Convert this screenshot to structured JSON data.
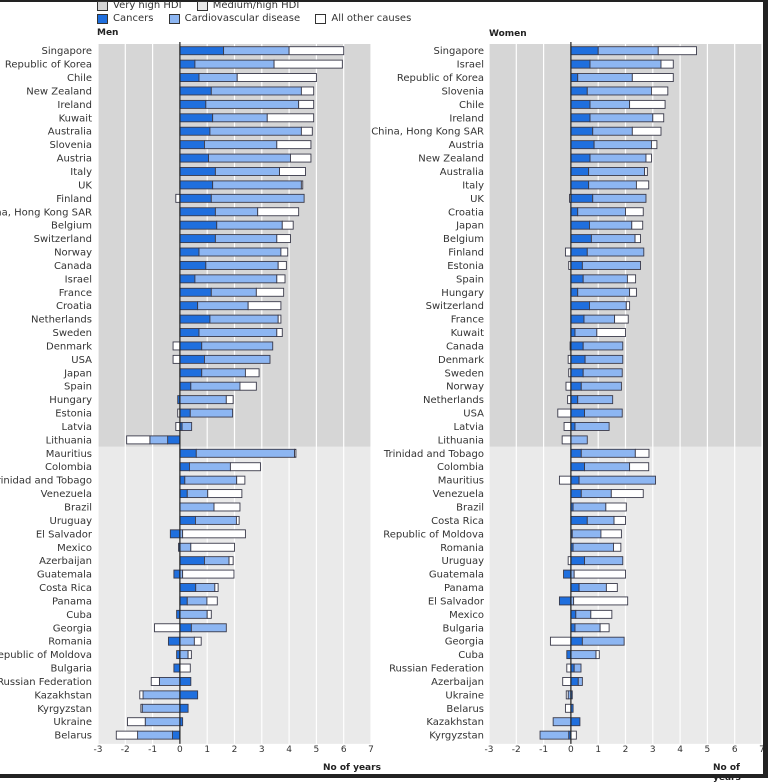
{
  "legend": {
    "hdi": [
      {
        "label": "Very high HDI",
        "color": "#d6d6d6"
      },
      {
        "label": "Medium/high HDI",
        "color": "#eaeaea"
      }
    ],
    "causes": [
      {
        "label": "Cancers",
        "color": "#1f6fde"
      },
      {
        "label": "Cardiovascular disease",
        "color": "#8db6f2"
      },
      {
        "label": "All other causes",
        "color": "#ffffff"
      }
    ]
  },
  "chart_data": [
    {
      "type": "bar",
      "title": "Men",
      "xlabel": "No of years",
      "xlim": [
        -3,
        7
      ],
      "xticks": [
        "-3",
        "-2",
        "-1",
        "0",
        "1",
        "2",
        "3",
        "4",
        "5",
        "6",
        "7"
      ],
      "stacked": true,
      "orientation": "horizontal",
      "series_names": [
        "Cancers",
        "Cardiovascular disease",
        "All other causes"
      ],
      "rows": [
        {
          "country": "Singapore",
          "group": "very_high",
          "cancers": 1.6,
          "cvd": 2.4,
          "other": 2.0
        },
        {
          "country": "Republic of Korea",
          "group": "very_high",
          "cancers": 0.55,
          "cvd": 2.9,
          "other": 2.5
        },
        {
          "country": "Chile",
          "group": "very_high",
          "cancers": 0.7,
          "cvd": 1.4,
          "other": 2.9
        },
        {
          "country": "New Zealand",
          "group": "very_high",
          "cancers": 1.15,
          "cvd": 3.3,
          "other": 0.45
        },
        {
          "country": "Ireland",
          "group": "very_high",
          "cancers": 0.95,
          "cvd": 3.4,
          "other": 0.55
        },
        {
          "country": "Kuwait",
          "group": "very_high",
          "cancers": 1.2,
          "cvd": 2.0,
          "other": 1.7
        },
        {
          "country": "Australia",
          "group": "very_high",
          "cancers": 1.1,
          "cvd": 3.35,
          "other": 0.4
        },
        {
          "country": "Slovenia",
          "group": "very_high",
          "cancers": 0.9,
          "cvd": 2.65,
          "other": 1.25
        },
        {
          "country": "Austria",
          "group": "very_high",
          "cancers": 1.05,
          "cvd": 3.0,
          "other": 0.75
        },
        {
          "country": "Italy",
          "group": "very_high",
          "cancers": 1.3,
          "cvd": 2.35,
          "other": 0.95
        },
        {
          "country": "UK",
          "group": "very_high",
          "cancers": 1.2,
          "cvd": 3.25,
          "other": 0.05
        },
        {
          "country": "Finland",
          "group": "very_high",
          "cancers": 1.15,
          "cvd": 3.4,
          "other": -0.15
        },
        {
          "country": "China, Hong Kong SAR",
          "group": "very_high",
          "cancers": 1.3,
          "cvd": 1.55,
          "other": 1.5
        },
        {
          "country": "Belgium",
          "group": "very_high",
          "cancers": 1.35,
          "cvd": 2.4,
          "other": 0.4
        },
        {
          "country": "Switzerland",
          "group": "very_high",
          "cancers": 1.3,
          "cvd": 2.25,
          "other": 0.5
        },
        {
          "country": "Norway",
          "group": "very_high",
          "cancers": 0.7,
          "cvd": 3.0,
          "other": 0.25
        },
        {
          "country": "Canada",
          "group": "very_high",
          "cancers": 0.95,
          "cvd": 2.65,
          "other": 0.3
        },
        {
          "country": "Israel",
          "group": "very_high",
          "cancers": 0.55,
          "cvd": 3.0,
          "other": 0.3
        },
        {
          "country": "France",
          "group": "very_high",
          "cancers": 1.15,
          "cvd": 1.65,
          "other": 1.0
        },
        {
          "country": "Croatia",
          "group": "very_high",
          "cancers": 0.65,
          "cvd": 1.85,
          "other": 1.2
        },
        {
          "country": "Netherlands",
          "group": "very_high",
          "cancers": 1.1,
          "cvd": 2.5,
          "other": 0.1
        },
        {
          "country": "Sweden",
          "group": "very_high",
          "cancers": 0.7,
          "cvd": 2.85,
          "other": 0.2
        },
        {
          "country": "Denmark",
          "group": "very_high",
          "cancers": 0.8,
          "cvd": 2.6,
          "other": -0.25
        },
        {
          "country": "USA",
          "group": "very_high",
          "cancers": 0.9,
          "cvd": 2.4,
          "other": -0.25
        },
        {
          "country": "Japan",
          "group": "very_high",
          "cancers": 0.8,
          "cvd": 1.6,
          "other": 0.5
        },
        {
          "country": "Spain",
          "group": "very_high",
          "cancers": 0.4,
          "cvd": 1.8,
          "other": 0.6
        },
        {
          "country": "Hungary",
          "group": "very_high",
          "cancers": -0.08,
          "cvd": 1.7,
          "other": 0.25
        },
        {
          "country": "Estonia",
          "group": "very_high",
          "cancers": 0.38,
          "cvd": 1.55,
          "other": -0.08
        },
        {
          "country": "Latvia",
          "group": "very_high",
          "cancers": 0.08,
          "cvd": 0.35,
          "other": -0.15
        },
        {
          "country": "Lithuania",
          "group": "very_high",
          "cancers": -0.45,
          "cvd": -0.65,
          "other": -0.85
        },
        {
          "country": "Mauritius",
          "group": "medium_high",
          "cancers": 0.6,
          "cvd": 3.6,
          "other": 0.05
        },
        {
          "country": "Colombia",
          "group": "medium_high",
          "cancers": 0.35,
          "cvd": 1.5,
          "other": 1.1
        },
        {
          "country": "Trinidad and Tobago",
          "group": "medium_high",
          "cancers": 0.18,
          "cvd": 1.9,
          "other": 0.3
        },
        {
          "country": "Venezuela",
          "group": "medium_high",
          "cancers": 0.27,
          "cvd": 0.75,
          "other": 1.25
        },
        {
          "country": "Brazil",
          "group": "medium_high",
          "cancers": 0.0,
          "cvd": 1.25,
          "other": 0.95
        },
        {
          "country": "Uruguay",
          "group": "medium_high",
          "cancers": 0.57,
          "cvd": 1.5,
          "other": 0.1
        },
        {
          "country": "El Salvador",
          "group": "medium_high",
          "cancers": -0.35,
          "cvd": 0.1,
          "other": 2.3
        },
        {
          "country": "Mexico",
          "group": "medium_high",
          "cancers": -0.05,
          "cvd": 0.4,
          "other": 1.6
        },
        {
          "country": "Azerbaijan",
          "group": "medium_high",
          "cancers": 0.9,
          "cvd": 0.9,
          "other": 0.15
        },
        {
          "country": "Guatemala",
          "group": "medium_high",
          "cancers": -0.22,
          "cvd": 0.1,
          "other": 1.88
        },
        {
          "country": "Costa Rica",
          "group": "medium_high",
          "cancers": 0.58,
          "cvd": 0.7,
          "other": 0.12
        },
        {
          "country": "Panama",
          "group": "medium_high",
          "cancers": 0.27,
          "cvd": 0.72,
          "other": 0.38
        },
        {
          "country": "Cuba",
          "group": "medium_high",
          "cancers": -0.12,
          "cvd": 1.0,
          "other": 0.15
        },
        {
          "country": "Georgia",
          "group": "medium_high",
          "cancers": 0.42,
          "cvd": 1.28,
          "other": -0.93
        },
        {
          "country": "Romania",
          "group": "medium_high",
          "cancers": -0.42,
          "cvd": 0.53,
          "other": 0.25
        },
        {
          "country": "Republic of Moldova",
          "group": "medium_high",
          "cancers": -0.12,
          "cvd": 0.3,
          "other": 0.12
        },
        {
          "country": "Bulgaria",
          "group": "medium_high",
          "cancers": -0.22,
          "cvd": 0.0,
          "other": 0.38
        },
        {
          "country": "Russian Federation",
          "group": "medium_high",
          "cancers": 0.4,
          "cvd": -0.75,
          "other": -0.3
        },
        {
          "country": "Kazakhstan",
          "group": "medium_high",
          "cancers": 0.65,
          "cvd": -1.35,
          "other": -0.12
        },
        {
          "country": "Kyrgyzstan",
          "group": "medium_high",
          "cancers": 0.3,
          "cvd": -1.38,
          "other": -0.05
        },
        {
          "country": "Ukraine",
          "group": "medium_high",
          "cancers": 0.1,
          "cvd": -1.27,
          "other": -0.65
        },
        {
          "country": "Belarus",
          "group": "medium_high",
          "cancers": -0.27,
          "cvd": -1.28,
          "other": -0.78
        }
      ]
    },
    {
      "type": "bar",
      "title": "Women",
      "xlabel": "No of years",
      "xlim": [
        -3,
        7
      ],
      "xticks": [
        "-3",
        "-2",
        "-1",
        "0",
        "1",
        "2",
        "3",
        "4",
        "5",
        "6",
        "7"
      ],
      "stacked": true,
      "orientation": "horizontal",
      "series_names": [
        "Cancers",
        "Cardiovascular disease",
        "All other causes"
      ],
      "rows": [
        {
          "country": "Singapore",
          "group": "very_high",
          "cancers": 1.0,
          "cvd": 2.2,
          "other": 1.4
        },
        {
          "country": "Israel",
          "group": "very_high",
          "cancers": 0.7,
          "cvd": 2.6,
          "other": 0.45
        },
        {
          "country": "Republic of Korea",
          "group": "very_high",
          "cancers": 0.25,
          "cvd": 2.0,
          "other": 1.5
        },
        {
          "country": "Slovenia",
          "group": "very_high",
          "cancers": 0.6,
          "cvd": 2.35,
          "other": 0.6
        },
        {
          "country": "Chile",
          "group": "very_high",
          "cancers": 0.7,
          "cvd": 1.45,
          "other": 1.3
        },
        {
          "country": "Ireland",
          "group": "very_high",
          "cancers": 0.7,
          "cvd": 2.3,
          "other": 0.4
        },
        {
          "country": "China, Hong Kong SAR",
          "group": "very_high",
          "cancers": 0.8,
          "cvd": 1.45,
          "other": 1.05
        },
        {
          "country": "Austria",
          "group": "very_high",
          "cancers": 0.85,
          "cvd": 2.1,
          "other": 0.2
        },
        {
          "country": "New Zealand",
          "group": "very_high",
          "cancers": 0.7,
          "cvd": 2.05,
          "other": 0.2
        },
        {
          "country": "Australia",
          "group": "very_high",
          "cancers": 0.65,
          "cvd": 2.05,
          "other": 0.1
        },
        {
          "country": "Italy",
          "group": "very_high",
          "cancers": 0.65,
          "cvd": 1.75,
          "other": 0.45
        },
        {
          "country": "UK",
          "group": "very_high",
          "cancers": 0.8,
          "cvd": 1.95,
          "other": -0.05
        },
        {
          "country": "Croatia",
          "group": "very_high",
          "cancers": 0.25,
          "cvd": 1.75,
          "other": 0.65
        },
        {
          "country": "Japan",
          "group": "very_high",
          "cancers": 0.68,
          "cvd": 1.55,
          "other": 0.4
        },
        {
          "country": "Belgium",
          "group": "very_high",
          "cancers": 0.75,
          "cvd": 1.6,
          "other": 0.2
        },
        {
          "country": "Finland",
          "group": "very_high",
          "cancers": 0.6,
          "cvd": 2.07,
          "other": -0.2
        },
        {
          "country": "Estonia",
          "group": "very_high",
          "cancers": 0.42,
          "cvd": 2.13,
          "other": -0.08
        },
        {
          "country": "Spain",
          "group": "very_high",
          "cancers": 0.45,
          "cvd": 1.62,
          "other": 0.3
        },
        {
          "country": "Hungary",
          "group": "very_high",
          "cancers": 0.25,
          "cvd": 1.9,
          "other": 0.25
        },
        {
          "country": "Switzerland",
          "group": "very_high",
          "cancers": 0.68,
          "cvd": 1.35,
          "other": 0.12
        },
        {
          "country": "France",
          "group": "very_high",
          "cancers": 0.48,
          "cvd": 1.12,
          "other": 0.5
        },
        {
          "country": "Kuwait",
          "group": "very_high",
          "cancers": 0.15,
          "cvd": 0.8,
          "other": 1.05
        },
        {
          "country": "Canada",
          "group": "very_high",
          "cancers": 0.45,
          "cvd": 1.45,
          "other": -0.03
        },
        {
          "country": "Denmark",
          "group": "very_high",
          "cancers": 0.52,
          "cvd": 1.38,
          "other": -0.1
        },
        {
          "country": "Sweden",
          "group": "very_high",
          "cancers": 0.45,
          "cvd": 1.43,
          "other": -0.08
        },
        {
          "country": "Norway",
          "group": "very_high",
          "cancers": 0.38,
          "cvd": 1.47,
          "other": -0.18
        },
        {
          "country": "Netherlands",
          "group": "very_high",
          "cancers": 0.25,
          "cvd": 1.28,
          "other": -0.12
        },
        {
          "country": "USA",
          "group": "very_high",
          "cancers": 0.5,
          "cvd": 1.38,
          "other": -0.48
        },
        {
          "country": "Latvia",
          "group": "very_high",
          "cancers": 0.15,
          "cvd": 1.25,
          "other": -0.25
        },
        {
          "country": "Lithuania",
          "group": "very_high",
          "cancers": 0.0,
          "cvd": 0.6,
          "other": -0.32
        },
        {
          "country": "Trinidad and Tobago",
          "group": "medium_high",
          "cancers": 0.38,
          "cvd": 1.98,
          "other": 0.5
        },
        {
          "country": "Colombia",
          "group": "medium_high",
          "cancers": 0.5,
          "cvd": 1.65,
          "other": 0.7
        },
        {
          "country": "Mauritius",
          "group": "medium_high",
          "cancers": 0.3,
          "cvd": 2.8,
          "other": -0.42
        },
        {
          "country": "Venezuela",
          "group": "medium_high",
          "cancers": 0.38,
          "cvd": 1.1,
          "other": 1.17
        },
        {
          "country": "Brazil",
          "group": "medium_high",
          "cancers": 0.08,
          "cvd": 1.2,
          "other": 0.75
        },
        {
          "country": "Costa Rica",
          "group": "medium_high",
          "cancers": 0.6,
          "cvd": 0.98,
          "other": 0.42
        },
        {
          "country": "Republic of Moldova",
          "group": "medium_high",
          "cancers": 0.05,
          "cvd": 1.05,
          "other": 0.75
        },
        {
          "country": "Romania",
          "group": "medium_high",
          "cancers": 0.08,
          "cvd": 1.48,
          "other": 0.27
        },
        {
          "country": "Uruguay",
          "group": "medium_high",
          "cancers": 0.5,
          "cvd": 1.4,
          "other": -0.1
        },
        {
          "country": "Guatemala",
          "group": "medium_high",
          "cancers": -0.27,
          "cvd": 0.12,
          "other": 1.88
        },
        {
          "country": "Panama",
          "group": "medium_high",
          "cancers": 0.3,
          "cvd": 1.0,
          "other": 0.4
        },
        {
          "country": "El Salvador",
          "group": "medium_high",
          "cancers": -0.42,
          "cvd": 0.1,
          "other": 1.98
        },
        {
          "country": "Mexico",
          "group": "medium_high",
          "cancers": 0.18,
          "cvd": 0.55,
          "other": 0.77
        },
        {
          "country": "Bulgaria",
          "group": "medium_high",
          "cancers": 0.15,
          "cvd": 0.92,
          "other": 0.33
        },
        {
          "country": "Georgia",
          "group": "medium_high",
          "cancers": 0.42,
          "cvd": 1.53,
          "other": -0.75
        },
        {
          "country": "Cuba",
          "group": "medium_high",
          "cancers": -0.15,
          "cvd": 0.92,
          "other": 0.12
        },
        {
          "country": "Russian Federation",
          "group": "medium_high",
          "cancers": 0.12,
          "cvd": 0.25,
          "other": -0.15
        },
        {
          "country": "Azerbaijan",
          "group": "medium_high",
          "cancers": 0.27,
          "cvd": 0.15,
          "other": -0.3
        },
        {
          "country": "Ukraine",
          "group": "medium_high",
          "cancers": 0.05,
          "cvd": -0.1,
          "other": -0.07
        },
        {
          "country": "Belarus",
          "group": "medium_high",
          "cancers": 0.08,
          "cvd": 0.0,
          "other": -0.2
        },
        {
          "country": "Kazakhstan",
          "group": "medium_high",
          "cancers": 0.33,
          "cvd": -0.65,
          "other": 0.0
        },
        {
          "country": "Kyrgyzstan",
          "group": "medium_high",
          "cancers": -0.08,
          "cvd": -1.05,
          "other": 0.2
        }
      ]
    }
  ]
}
